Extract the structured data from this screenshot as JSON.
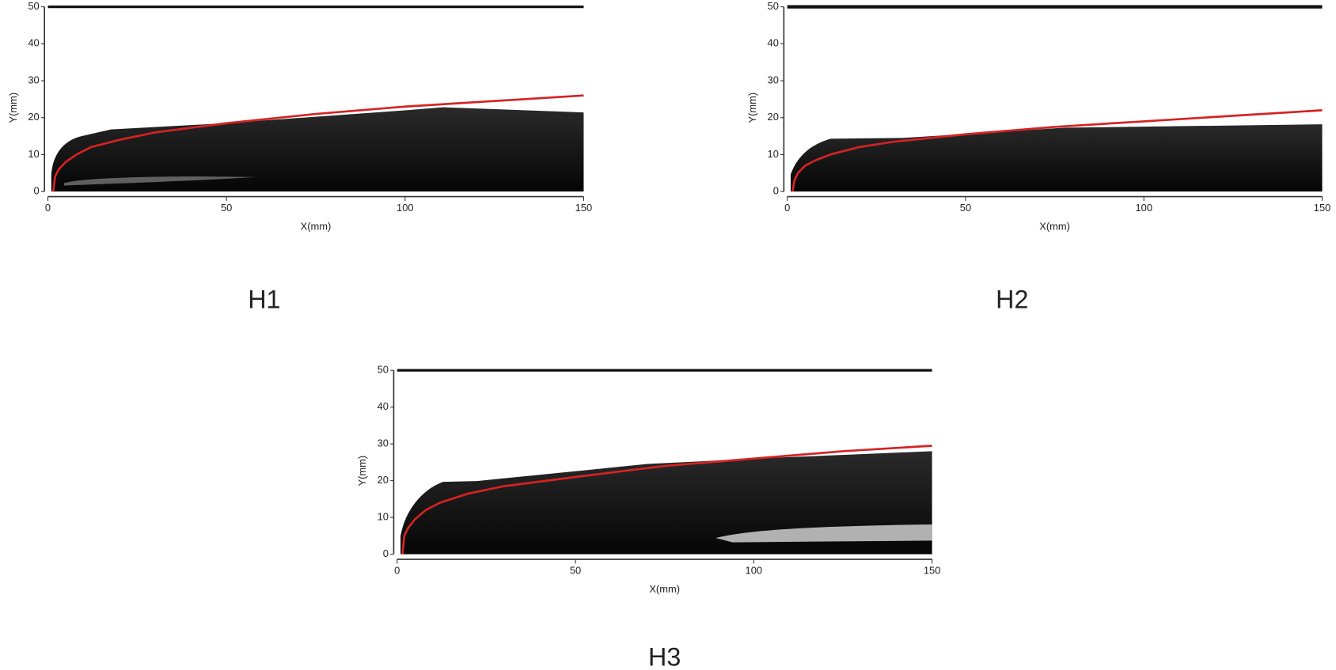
{
  "chart_data": [
    {
      "type": "line",
      "title": "H1",
      "x_label": "X(mm)",
      "y_label": "Y(mm)",
      "x": [
        1.5,
        2,
        3,
        5,
        8,
        12,
        20,
        30,
        50,
        75,
        100,
        125,
        150
      ],
      "series": [
        {
          "color": "#d42323",
          "values": [
            0,
            4,
            6,
            8,
            10,
            12,
            14,
            16,
            18.5,
            21,
            23,
            24.5,
            26
          ]
        }
      ],
      "xlim": [
        0,
        150
      ],
      "ylim": [
        0,
        50
      ],
      "xticks": [
        0,
        50,
        100,
        150
      ],
      "yticks": [
        0,
        10,
        20,
        30,
        40,
        50
      ]
    },
    {
      "type": "line",
      "title": "H2",
      "x_label": "X(mm)",
      "y_label": "Y(mm)",
      "x": [
        1.5,
        2,
        3,
        5,
        8,
        12,
        20,
        30,
        50,
        75,
        100,
        125,
        150
      ],
      "series": [
        {
          "color": "#d42323",
          "values": [
            0,
            3,
            5,
            7,
            8.5,
            10,
            12,
            13.5,
            15.5,
            17.5,
            19,
            20.5,
            22
          ]
        }
      ],
      "xlim": [
        0,
        150
      ],
      "ylim": [
        0,
        50
      ],
      "xticks": [
        0,
        50,
        100,
        150
      ],
      "yticks": [
        0,
        10,
        20,
        30,
        40,
        50
      ]
    },
    {
      "type": "line",
      "title": "H3",
      "x_label": "X(mm)",
      "y_label": "Y(mm)",
      "x": [
        1.5,
        2,
        3,
        5,
        8,
        12,
        20,
        30,
        50,
        75,
        100,
        125,
        150
      ],
      "series": [
        {
          "color": "#d42323",
          "values": [
            0,
            5,
            7,
            9.5,
            12,
            14,
            16.5,
            18.5,
            21,
            24,
            26,
            28,
            29.5
          ]
        }
      ],
      "xlim": [
        0,
        150
      ],
      "ylim": [
        0,
        50
      ],
      "xticks": [
        0,
        50,
        100,
        150
      ],
      "yticks": [
        0,
        10,
        20,
        30,
        40,
        50
      ]
    }
  ]
}
